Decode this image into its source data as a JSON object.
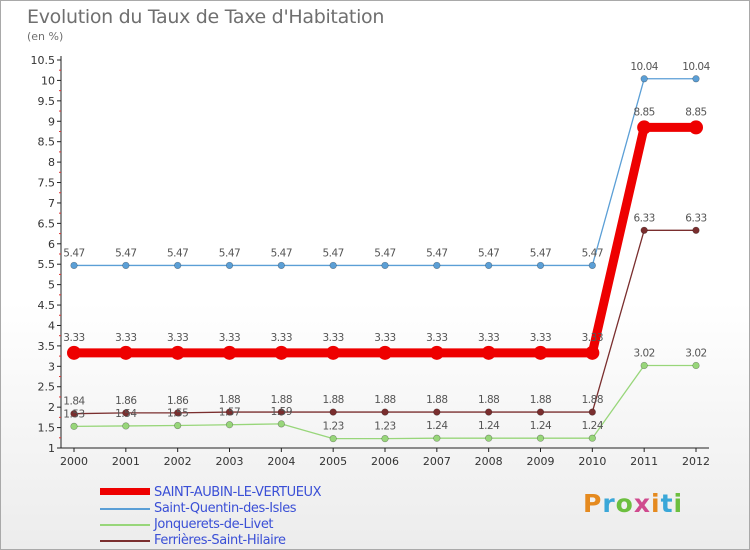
{
  "title": "Evolution du Taux de Taxe d'Habitation",
  "subtitle": "(en %)",
  "logo": {
    "letters": [
      "P",
      "r",
      "o",
      "x",
      "i",
      "t",
      "i"
    ],
    "colors": [
      "#e58a1f",
      "#3aa7d8",
      "#6cbf3f",
      "#d04a8e",
      "#e58a1f",
      "#3aa7d8",
      "#6cbf3f"
    ]
  },
  "chart_data": {
    "type": "line",
    "title": "Evolution du Taux de Taxe d'Habitation",
    "ylabel": "(en %)",
    "xlabel": "",
    "ylim": [
      1,
      10.5
    ],
    "yticks": [
      "1",
      "1.5",
      "2",
      "2.5",
      "3",
      "3.5",
      "4",
      "4.5",
      "5",
      "5.5",
      "6",
      "6.5",
      "7",
      "7.5",
      "8",
      "8.5",
      "9",
      "9.5",
      "10",
      "10.5"
    ],
    "x": [
      "2000",
      "2001",
      "2002",
      "2003",
      "2004",
      "2005",
      "2006",
      "2007",
      "2008",
      "2009",
      "2010",
      "2011",
      "2012"
    ],
    "series": [
      {
        "name": "SAINT-AUBIN-LE-VERTUEUX",
        "color": "#ee0000",
        "values": [
          3.33,
          3.33,
          3.33,
          3.33,
          3.33,
          3.33,
          3.33,
          3.33,
          3.33,
          3.33,
          3.33,
          8.85,
          8.85
        ],
        "labels": [
          "3.33",
          "3.33",
          "3.33",
          "3.33",
          "3.33",
          "3.33",
          "3.33",
          "3.33",
          "3.33",
          "3.33",
          "3.33",
          "8.85",
          "8.85"
        ]
      },
      {
        "name": "Saint-Quentin-des-Isles",
        "color": "#5b9fd6",
        "values": [
          5.47,
          5.47,
          5.47,
          5.47,
          5.47,
          5.47,
          5.47,
          5.47,
          5.47,
          5.47,
          5.47,
          10.04,
          10.04
        ],
        "labels": [
          "5.47",
          "5.47",
          "5.47",
          "5.47",
          "5.47",
          "5.47",
          "5.47",
          "5.47",
          "5.47",
          "5.47",
          "5.47",
          "10.04",
          "10.04"
        ]
      },
      {
        "name": "Jonquerets-de-Livet",
        "color": "#98d67a",
        "values": [
          1.53,
          1.54,
          1.55,
          1.57,
          1.59,
          1.23,
          1.23,
          1.24,
          1.24,
          1.24,
          1.24,
          3.02,
          3.02
        ],
        "labels": [
          "1.53",
          "1.54",
          "1.55",
          "1.57",
          "1.59",
          "1.23",
          "1.23",
          "1.24",
          "1.24",
          "1.24",
          "1.24",
          "3.02",
          "3.02"
        ]
      },
      {
        "name": "Ferrières-Saint-Hilaire",
        "color": "#7a2e2e",
        "values": [
          1.84,
          1.86,
          1.86,
          1.88,
          1.88,
          1.88,
          1.88,
          1.88,
          1.88,
          1.88,
          1.88,
          6.33,
          6.33
        ],
        "labels": [
          "1.84",
          "1.86",
          "1.86",
          "1.88",
          "1.88",
          "1.88",
          "1.88",
          "1.88",
          "1.88",
          "1.88",
          "1.88",
          "6.33",
          "6.33"
        ]
      }
    ],
    "legend_position": "bottom-left"
  }
}
